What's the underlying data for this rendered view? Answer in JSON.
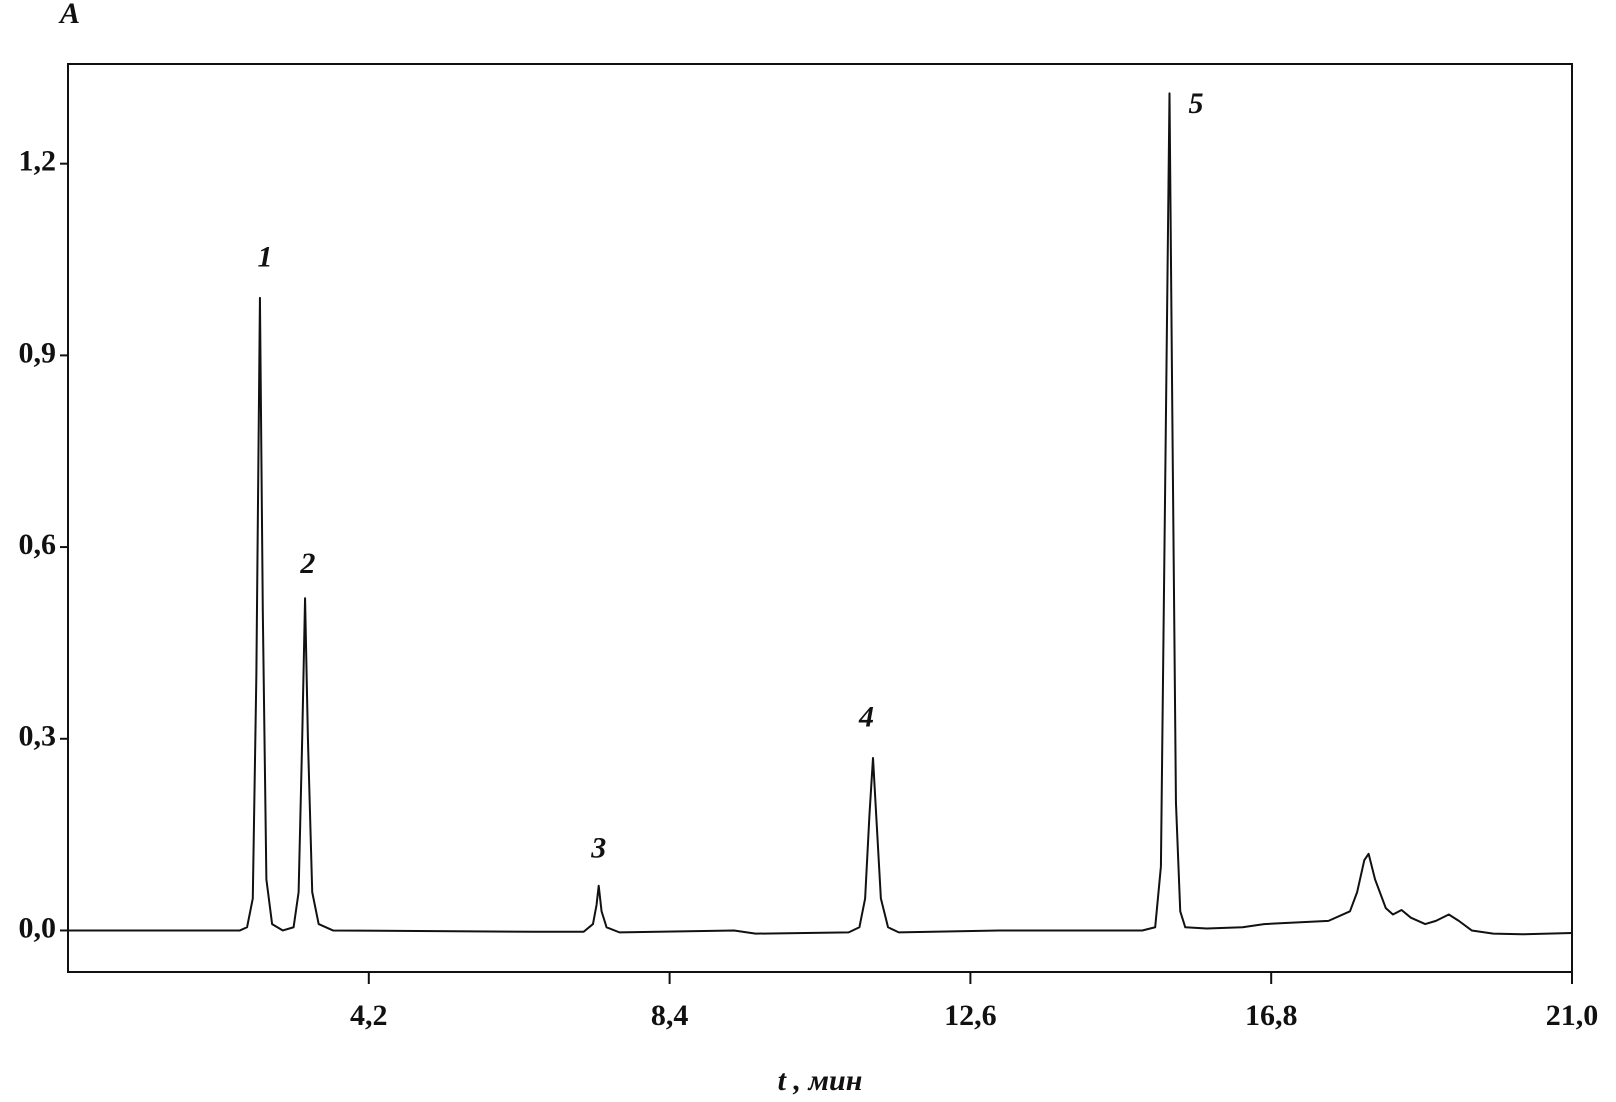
{
  "chart_data": {
    "type": "line",
    "y_label": "A",
    "x_label": "t , мин",
    "xlim": [
      0,
      21.0
    ],
    "ylim": [
      -0.065,
      1.356
    ],
    "xticks": [
      {
        "value": 4.2,
        "label": "4,2"
      },
      {
        "value": 8.4,
        "label": "8,4"
      },
      {
        "value": 12.6,
        "label": "12,6"
      },
      {
        "value": 16.8,
        "label": "16,8"
      },
      {
        "value": 21.0,
        "label": "21,0"
      }
    ],
    "yticks": [
      {
        "value": 0.0,
        "label": "0,0"
      },
      {
        "value": 0.3,
        "label": "0,3"
      },
      {
        "value": 0.6,
        "label": "0,6"
      },
      {
        "value": 0.9,
        "label": "0,9"
      },
      {
        "value": 1.2,
        "label": "1,2"
      }
    ],
    "color": "#111111",
    "x": [
      0,
      2.4,
      2.5,
      2.58,
      2.63,
      2.68,
      2.72,
      2.77,
      2.85,
      3.0,
      3.15,
      3.22,
      3.27,
      3.31,
      3.35,
      3.41,
      3.5,
      3.7,
      6.5,
      7.2,
      7.33,
      7.38,
      7.41,
      7.45,
      7.52,
      7.7,
      9.3,
      9.6,
      10.9,
      11.05,
      11.13,
      11.19,
      11.24,
      11.29,
      11.35,
      11.45,
      11.6,
      13.0,
      15.0,
      15.18,
      15.26,
      15.32,
      15.38,
      15.42,
      15.47,
      15.53,
      15.6,
      15.9,
      16.4,
      16.7,
      17.6,
      17.9,
      18.0,
      18.1,
      18.16,
      18.25,
      18.4,
      18.5,
      18.62,
      18.75,
      18.95,
      19.1,
      19.28,
      19.42,
      19.6,
      19.9,
      20.3,
      21.0
    ],
    "values": [
      0,
      0,
      0.005,
      0.05,
      0.4,
      0.99,
      0.5,
      0.08,
      0.01,
      0.0,
      0.005,
      0.06,
      0.3,
      0.52,
      0.3,
      0.06,
      0.01,
      0.0,
      -0.002,
      -0.002,
      0.01,
      0.04,
      0.07,
      0.03,
      0.005,
      -0.003,
      0.0,
      -0.005,
      -0.003,
      0.005,
      0.05,
      0.18,
      0.27,
      0.17,
      0.05,
      0.005,
      -0.003,
      0,
      0.0,
      0.005,
      0.1,
      0.7,
      1.31,
      0.8,
      0.2,
      0.03,
      0.005,
      0.003,
      0.005,
      0.01,
      0.015,
      0.03,
      0.06,
      0.11,
      0.12,
      0.08,
      0.035,
      0.025,
      0.032,
      0.02,
      0.01,
      0.015,
      0.025,
      0.015,
      0.0,
      -0.005,
      -0.006,
      -0.004
    ],
    "annotations": [
      {
        "text": "1",
        "x": 2.75,
        "y": 1.05
      },
      {
        "text": "2",
        "x": 3.35,
        "y": 0.57
      },
      {
        "text": "3",
        "x": 7.41,
        "y": 0.125
      },
      {
        "text": "4",
        "x": 11.15,
        "y": 0.33
      },
      {
        "text": "5",
        "x": 15.75,
        "y": 1.29
      }
    ]
  }
}
